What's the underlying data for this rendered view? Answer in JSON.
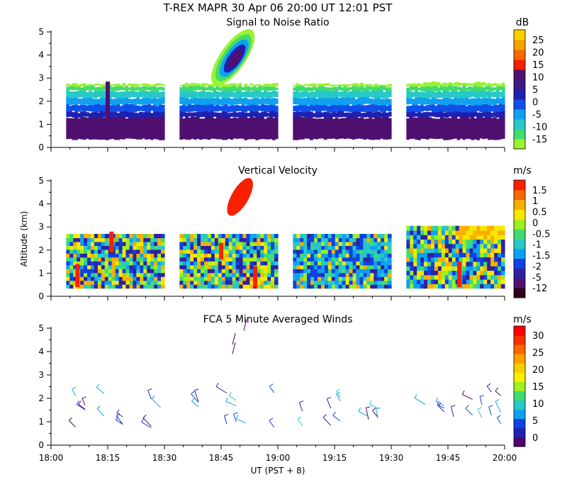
{
  "page": {
    "title": "T-REX  MAPR 30 Apr 06  20:00 UT  12:01  PST",
    "xlabel": "UT  (PST + 8)",
    "ylabel": "Altitude (km)"
  },
  "chart_data": [
    {
      "type": "heatmap",
      "title": "Signal to Noise Ratio",
      "units": "dB",
      "ylim": [
        0,
        5
      ],
      "yticks": [
        "0",
        "1",
        "2",
        "3",
        "4",
        "5"
      ],
      "xlim": [
        "18:00",
        "20:00"
      ],
      "colorbar": {
        "labels": [
          "-15",
          "-10",
          "-5",
          "0",
          "5",
          "10",
          "15",
          "20",
          "25"
        ],
        "colors": [
          "#9cf230",
          "#40dc70",
          "#28c8c8",
          "#10a0f0",
          "#1050e8",
          "#2020b0",
          "#401880",
          "#501070",
          "#f02000",
          "#f86800",
          "#f8a000",
          "#f8d000"
        ]
      },
      "segments": [
        [
          "18:04",
          "18:30"
        ],
        [
          "18:34",
          "19:00"
        ],
        [
          "19:04",
          "19:30"
        ],
        [
          "19:34",
          "20:00"
        ]
      ]
    },
    {
      "type": "heatmap",
      "title": "Vertical Velocity",
      "units": "m/s",
      "ylim": [
        0,
        5
      ],
      "yticks": [
        "0",
        "1",
        "2",
        "3",
        "4",
        "5"
      ],
      "colorbar": {
        "labels": [
          "-12",
          "-5",
          "-2",
          "-1.5",
          "-1",
          "-0.5",
          "0",
          "0.5",
          "1",
          "1.5"
        ],
        "colors": [
          "#300018",
          "#501070",
          "#3020a0",
          "#1040e0",
          "#10a0f0",
          "#28c8c8",
          "#40dc70",
          "#a0f020",
          "#f8e800",
          "#f8b000",
          "#f86800",
          "#f82000"
        ]
      },
      "segments": [
        [
          "18:04",
          "18:30"
        ],
        [
          "18:34",
          "19:00"
        ],
        [
          "19:04",
          "19:30"
        ],
        [
          "19:34",
          "20:00"
        ]
      ]
    },
    {
      "type": "scatter",
      "subtype": "wind-barbs",
      "title": "FCA 5 Minute Averaged Winds",
      "units": "m/s",
      "ylim": [
        0,
        5
      ],
      "yticks": [
        "0",
        "1",
        "2",
        "3",
        "4",
        "5"
      ],
      "xticks": [
        "18:00",
        "18:15",
        "18:30",
        "18:45",
        "19:00",
        "19:15",
        "19:30",
        "19:45",
        "20:00"
      ],
      "colorbar": {
        "labels": [
          "0",
          "5",
          "10",
          "15",
          "20",
          "25",
          "30"
        ],
        "colors": [
          "#500070",
          "#2020b0",
          "#1040e0",
          "#10a0f0",
          "#28c8c8",
          "#40dc70",
          "#a0f020",
          "#f8f000",
          "#f8d000",
          "#f8a000",
          "#f86800",
          "#f83000",
          "#f80000"
        ]
      }
    }
  ]
}
